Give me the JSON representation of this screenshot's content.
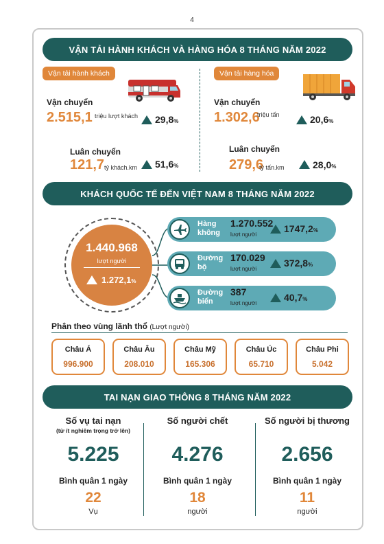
{
  "page_number": "4",
  "section1": {
    "title": "VẬN TẢI HÀNH KHÁCH VÀ HÀNG HÓA 8 THÁNG NĂM 2022",
    "passenger": {
      "tag": "Vận tải hành khách",
      "transport_label": "Vận chuyển",
      "transport_value": "2.515,1",
      "transport_unit": "triệu lượt khách",
      "transport_growth": "29,8",
      "rotation_label": "Luân chuyển",
      "rotation_value": "121,7",
      "rotation_unit": "tỷ khách.km",
      "rotation_growth": "51,6"
    },
    "cargo": {
      "tag": "Vận tải hàng hóa",
      "transport_label": "Vận chuyển",
      "transport_value": "1.302,6",
      "transport_unit": "triệu tấn",
      "transport_growth": "20,6",
      "rotation_label": "Luân chuyển",
      "rotation_value": "279,6",
      "rotation_unit": "tỷ tấn.km",
      "rotation_growth": "28,0"
    },
    "percent_sign": "%"
  },
  "section2": {
    "title": "KHÁCH QUỐC TẾ ĐẾN VIỆT NAM 8 THÁNG NĂM 2022",
    "total_value": "1.440.968",
    "total_unit": "lượt người",
    "total_growth": "1.272,1",
    "modes": [
      {
        "name_l1": "Hàng",
        "name_l2": "không",
        "value": "1.270.552",
        "unit": "lượt người",
        "growth": "1747,2",
        "icon": "airplane-icon"
      },
      {
        "name_l1": "Đường",
        "name_l2": "bộ",
        "value": "170.029",
        "unit": "lượt người",
        "growth": "372,8",
        "icon": "bus-icon"
      },
      {
        "name_l1": "Đường",
        "name_l2": "biển",
        "value": "387",
        "unit": "lượt người",
        "growth": "40,7",
        "icon": "ship-icon"
      }
    ],
    "region_title": "Phân theo vùng lãnh thổ",
    "region_title_unit": "(Lượt người)",
    "regions": [
      {
        "name": "Châu Á",
        "value": "996.900"
      },
      {
        "name": "Châu Âu",
        "value": "208.010"
      },
      {
        "name": "Châu Mỹ",
        "value": "165.306"
      },
      {
        "name": "Châu Úc",
        "value": "65.710"
      },
      {
        "name": "Châu Phi",
        "value": "5.042"
      }
    ]
  },
  "section3": {
    "title": "TAI NẠN GIAO THÔNG 8 THÁNG NĂM 2022",
    "columns": [
      {
        "heading": "Số vụ tai nạn",
        "subheading": "(từ ít nghiêm trọng trở lên)",
        "value": "5.225",
        "avg_label": "Bình quân 1 ngày",
        "avg_value": "22",
        "avg_unit": "Vụ"
      },
      {
        "heading": "Số người chết",
        "subheading": "",
        "value": "4.276",
        "avg_label": "Bình quân 1 ngày",
        "avg_value": "18",
        "avg_unit": "người"
      },
      {
        "heading": "Số người bị thương",
        "subheading": "",
        "value": "2.656",
        "avg_label": "Bình quân 1 ngày",
        "avg_value": "11",
        "avg_unit": "người"
      }
    ]
  },
  "colors": {
    "teal_dark": "#1f5d5b",
    "teal_light": "#5eaab5",
    "orange": "#e0873a"
  }
}
